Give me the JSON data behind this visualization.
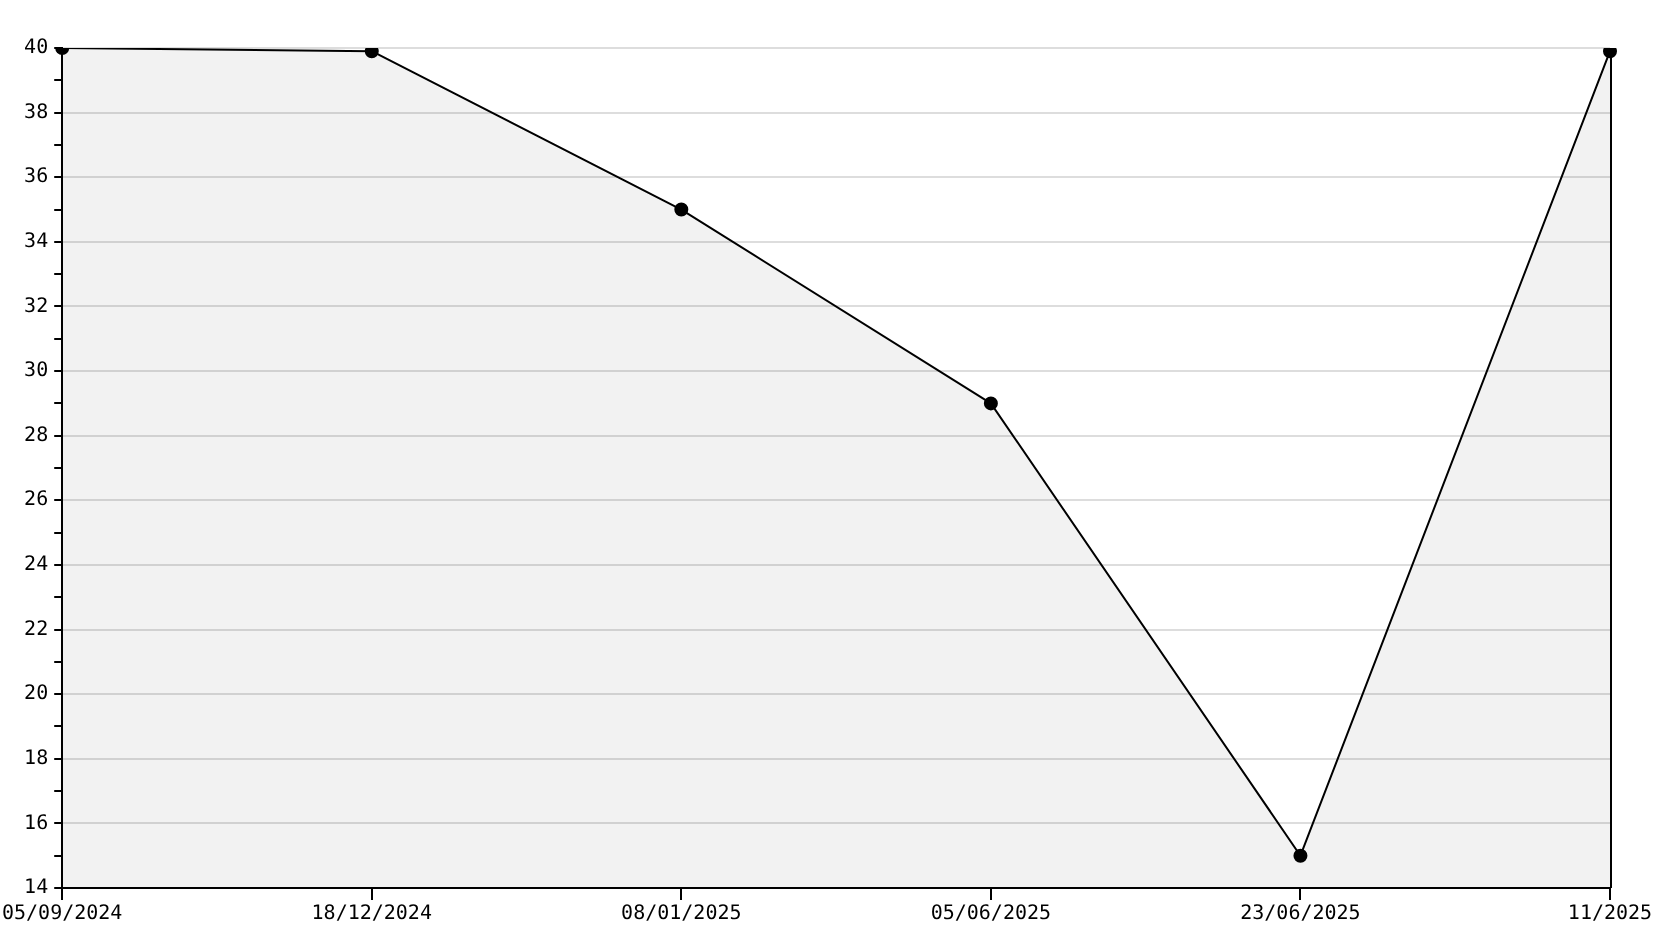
{
  "chart_data": {
    "type": "area",
    "categories": [
      "05/09/2024",
      "18/12/2024",
      "08/01/2025",
      "05/06/2025",
      "23/06/2025",
      "11/2025"
    ],
    "series": [
      {
        "color": "#000000",
        "values": [
          40,
          39.9,
          35,
          29,
          15,
          39.9
        ]
      }
    ],
    "ylim": [
      14,
      40
    ],
    "yticks": [
      14,
      {
        "value": 15,
        "label": null
      },
      16,
      {
        "value": 17,
        "label": null
      },
      18,
      {
        "value": 19,
        "label": null
      },
      20,
      {
        "value": 21,
        "label": null
      },
      22,
      {
        "value": 23,
        "label": null
      },
      24,
      {
        "value": 25,
        "label": null
      },
      26,
      {
        "value": 27,
        "label": null
      },
      28,
      {
        "value": 29,
        "label": null
      },
      30,
      {
        "value": 31,
        "label": null
      },
      32,
      {
        "value": 33,
        "label": null
      },
      34,
      {
        "value": 35,
        "label": null
      },
      36,
      {
        "value": 37,
        "label": null
      },
      38,
      {
        "value": 39,
        "label": null
      },
      40
    ],
    "grid": "y",
    "legend": false,
    "marker": "circle",
    "line_style": "solid"
  }
}
